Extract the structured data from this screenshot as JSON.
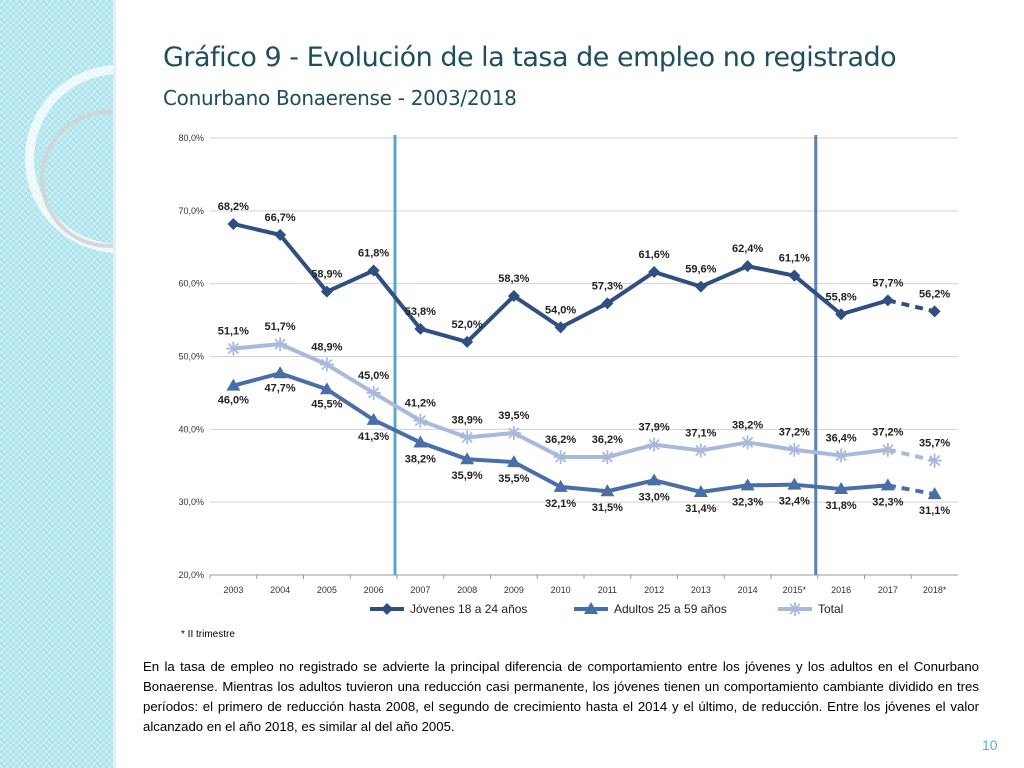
{
  "slide": {
    "title": "Gráfico 9 - Evolución de la tasa de empleo no registrado",
    "subtitle": "Conurbano Bonaerense - 2003/2018",
    "footnote": "* II trimestre",
    "paragraph": "En la tasa de empleo no registrado se advierte la principal diferencia de comportamiento entre los jóvenes y los adultos en el Conurbano Bonaerense. Mientras los adultos tuvieron una reducción casi permanente, los jóvenes tienen un comportamiento cambiante dividido en tres períodos: el primero de reducción hasta 2008, el segundo de crecimiento hasta el 2014 y el último, de reducción. Entre los jóvenes el valor alcanzado en el año 2018, es similar al del año 2005.",
    "page_number": "10"
  },
  "chart_data": {
    "type": "line",
    "title": "",
    "xlabel": "",
    "ylabel": "",
    "categories": [
      "2003",
      "2004",
      "2005",
      "2006",
      "2007",
      "2008",
      "2009",
      "2010",
      "2011",
      "2012",
      "2013",
      "2014",
      "2015*",
      "2016",
      "2017",
      "2018*"
    ],
    "ylim": [
      20,
      80
    ],
    "yticks": [
      20,
      30,
      40,
      50,
      60,
      70,
      80
    ],
    "ytick_labels": [
      "20,0%",
      "30,0%",
      "40,0%",
      "50,0%",
      "60,0%",
      "70,0%",
      "80,0%"
    ],
    "grid": true,
    "legend_position": "bottom",
    "series": [
      {
        "name": "Jóvenes 18 a 24 años",
        "color": "#2f4f80",
        "marker": "diamond",
        "values": [
          68.2,
          66.7,
          58.9,
          61.8,
          53.8,
          52.0,
          58.3,
          54.0,
          57.3,
          61.6,
          59.6,
          62.4,
          61.1,
          55.8,
          57.7,
          56.2
        ],
        "labels": [
          "68,2%",
          "66,7%",
          "58,9%",
          "61,8%",
          "53,8%",
          "52,0%",
          "58,3%",
          "54,0%",
          "57,3%",
          "61,6%",
          "59,6%",
          "62,4%",
          "61,1%",
          "55,8%",
          "57,7%",
          "56,2%"
        ]
      },
      {
        "name": "Adultos 25 a 59 años",
        "color": "#4a6ea8",
        "marker": "triangle",
        "values": [
          46.0,
          47.7,
          45.5,
          41.3,
          38.2,
          35.9,
          35.5,
          32.1,
          31.5,
          33.0,
          31.4,
          32.3,
          32.4,
          31.8,
          32.3,
          31.1
        ],
        "labels": [
          "46,0%",
          "47,7%",
          "45,5%",
          "41,3%",
          "38,2%",
          "35,9%",
          "35,5%",
          "32,1%",
          "31,5%",
          "33,0%",
          "31,4%",
          "32,3%",
          "32,4%",
          "31,8%",
          "32,3%",
          "31,1%"
        ]
      },
      {
        "name": "Total",
        "color": "#a8b9dc",
        "marker": "star",
        "values": [
          51.1,
          51.7,
          48.9,
          45.0,
          41.2,
          38.9,
          39.5,
          36.2,
          36.2,
          37.9,
          37.1,
          38.2,
          37.2,
          36.4,
          37.2,
          35.7
        ],
        "labels": [
          "51,1%",
          "51,7%",
          "48,9%",
          "45,0%",
          "41,2%",
          "38,9%",
          "39,5%",
          "36,2%",
          "36,2%",
          "37,9%",
          "37,1%",
          "38,2%",
          "37,2%",
          "36,4%",
          "37,2%",
          "35,7%"
        ]
      }
    ],
    "dashed_last_segment": true,
    "period_markers": [
      {
        "between": [
          "2006",
          "2007"
        ],
        "color": "#5aa8c8"
      },
      {
        "between": [
          "2015*",
          "2016"
        ],
        "color": "#5b7fb3"
      }
    ]
  }
}
